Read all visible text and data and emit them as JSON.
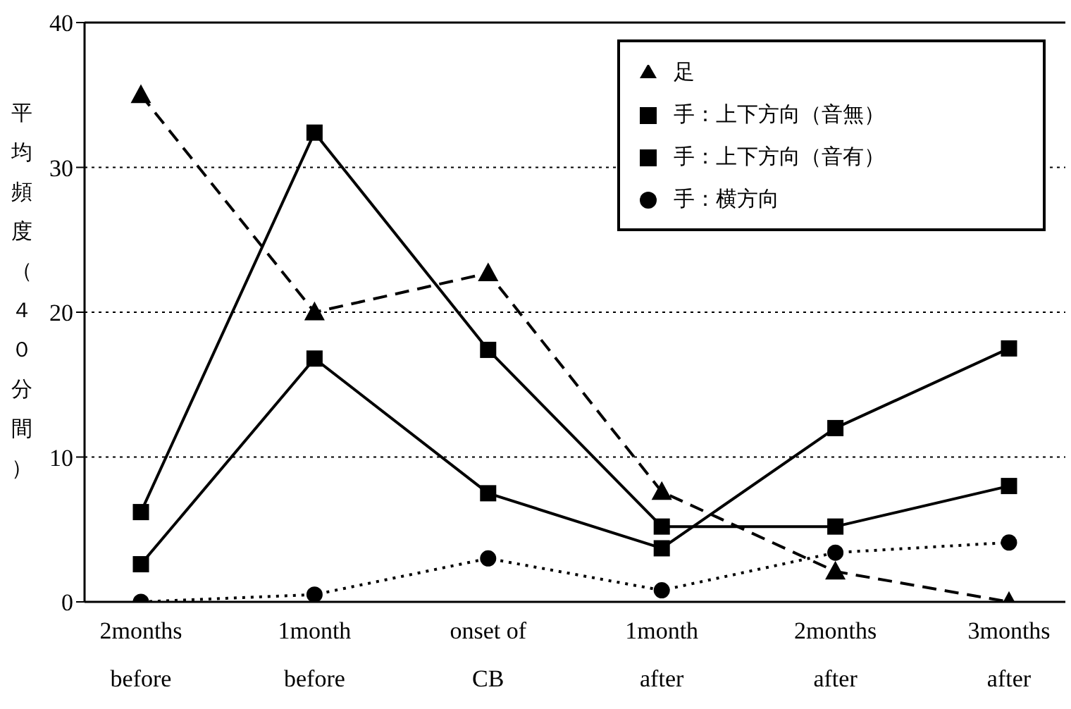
{
  "chart_data": {
    "type": "line",
    "ylabel": "平均頻度（４０分間）",
    "categories": [
      "2months before",
      "1month before",
      "onset of CB",
      "1month after",
      "2months after",
      "3months after"
    ],
    "ylim": [
      0,
      40
    ],
    "yticks": [
      0,
      10,
      20,
      30,
      40
    ],
    "grid": "y",
    "legend": "top right",
    "series": [
      {
        "name": "足",
        "color": "#000000",
        "values": [
          35,
          20,
          22.7,
          7.6,
          2.1,
          0
        ],
        "marker": "triangle",
        "line_style": "dashed"
      },
      {
        "name": "手：上下方向（音無）",
        "color": "#000000",
        "values": [
          6.2,
          32.4,
          17.4,
          5.2,
          5.2,
          8
        ],
        "marker": "square",
        "line_style": "solid"
      },
      {
        "name": "手：上下方向（音有）",
        "color": "#000000",
        "values": [
          2.6,
          16.8,
          7.5,
          3.7,
          12,
          17.5
        ],
        "marker": "square",
        "line_style": "solid"
      },
      {
        "name": "手：横方向",
        "color": "#000000",
        "values": [
          0,
          0.5,
          3,
          0.8,
          3.4,
          4.1
        ],
        "marker": "circle",
        "line_style": "dotted"
      }
    ]
  }
}
